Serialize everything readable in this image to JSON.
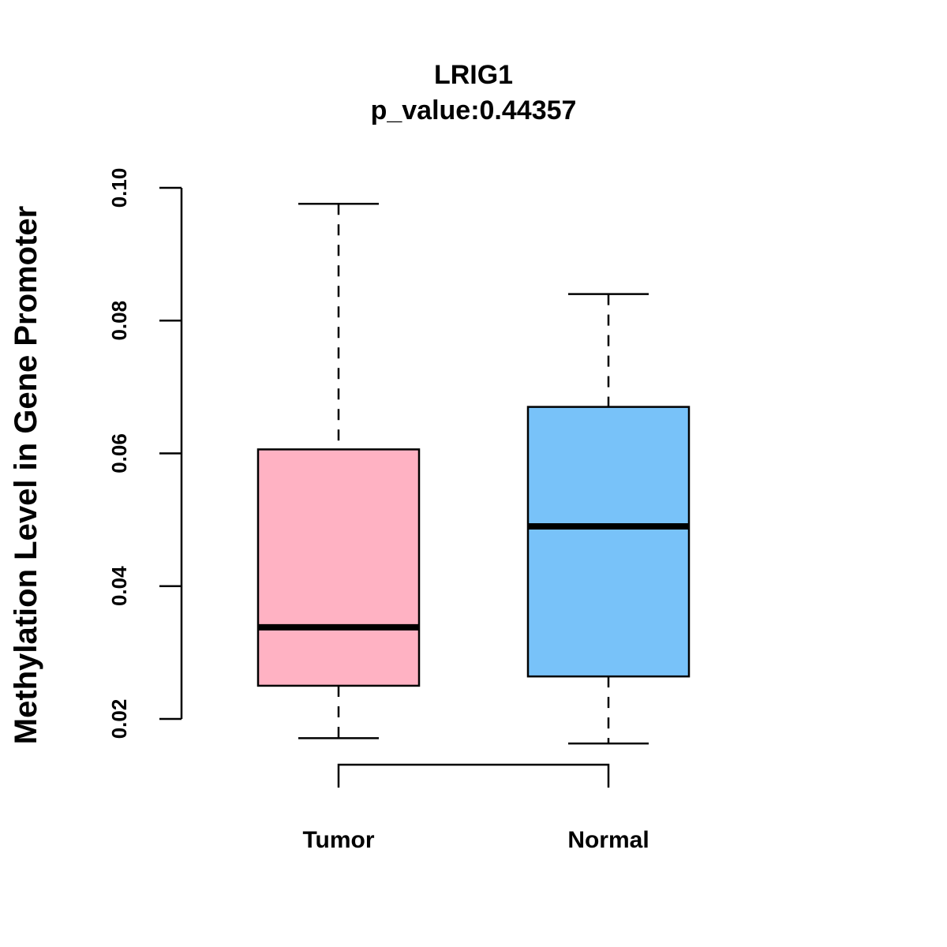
{
  "chart_data": {
    "type": "box",
    "title": "LRIG1",
    "subtitle": "p_value:0.44357",
    "xlabel": "",
    "ylabel": "Methylation Level in Gene Promoter",
    "ylim": [
      0.02,
      0.1
    ],
    "yticks": [
      "0.02",
      "0.04",
      "0.06",
      "0.08",
      "0.10"
    ],
    "ytick_values": [
      0.02,
      0.04,
      0.06,
      0.08,
      0.1
    ],
    "categories": [
      "Tumor",
      "Normal"
    ],
    "boxes": [
      {
        "name": "Tumor",
        "whisker_low": 0.0171,
        "q1": 0.025,
        "median": 0.0338,
        "q3": 0.0606,
        "whisker_high": 0.0976,
        "color": "#FFB2C3"
      },
      {
        "name": "Normal",
        "whisker_low": 0.0163,
        "q1": 0.0264,
        "median": 0.049,
        "q3": 0.067,
        "whisker_high": 0.084,
        "color": "#78C2F9"
      }
    ],
    "comparison_bracket": [
      "Tumor",
      "Normal"
    ],
    "grid": false,
    "legend": "none"
  }
}
